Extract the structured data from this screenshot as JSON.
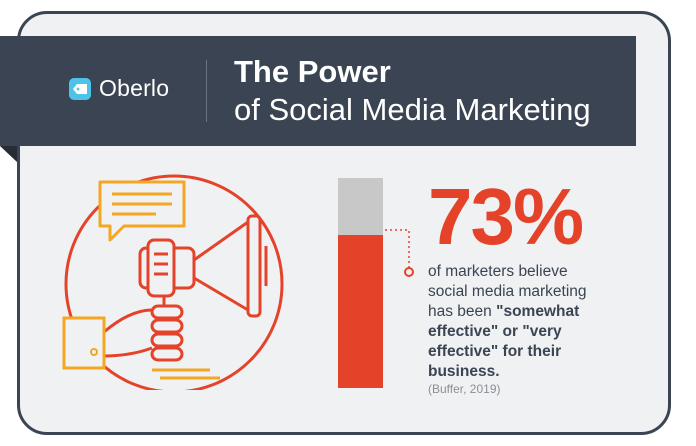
{
  "brand": {
    "name": "Oberlo",
    "logo_color": "#4ec3ea",
    "logo_icon": "tag-icon"
  },
  "header": {
    "title_line1": "The Power",
    "title_line2": "of Social Media Marketing"
  },
  "stat": {
    "value_label": "73%",
    "value": 73,
    "line1": "of marketers believe",
    "line2": "social media marketing",
    "line3_normal": "has been ",
    "line3_bold": "\"somewhat",
    "line4": "effective\" or \"very",
    "line5": "effective\" for their",
    "line6": "business.",
    "source": "(Buffer, 2019)"
  },
  "colors": {
    "accent": "#e4432a",
    "secondary": "#f5a623",
    "dark": "#3a4452",
    "bar_remainder": "#c8c8c8"
  },
  "illustration": {
    "icon": "megaphone-icon",
    "bubble_icon": "speech-bubble-icon"
  }
}
